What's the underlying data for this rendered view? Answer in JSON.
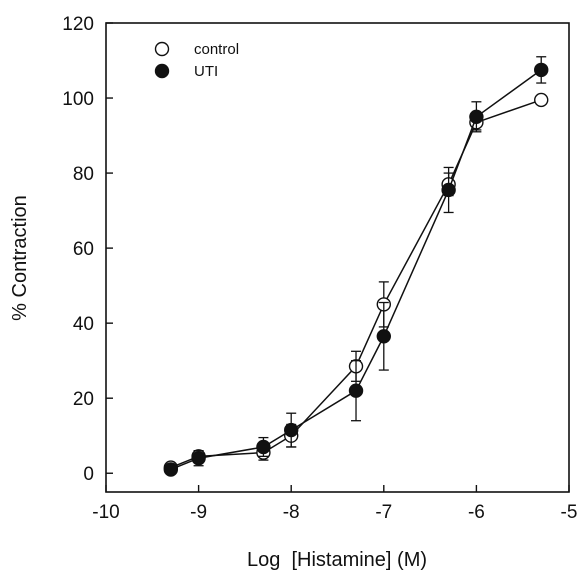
{
  "chart_data": {
    "type": "line",
    "title": "",
    "xlabel": "Log  [Histamine] (M)",
    "ylabel": "% Contraction",
    "xlim": [
      -10,
      -5
    ],
    "ylim": [
      -5,
      120
    ],
    "xticks": [
      -10,
      -9,
      -8,
      -7,
      -6,
      -5
    ],
    "yticks": [
      0,
      20,
      40,
      60,
      80,
      100,
      120
    ],
    "grid": false,
    "legend_position": "top-left",
    "series": [
      {
        "name": "control",
        "marker": "open-circle",
        "color": "#111111",
        "x": [
          -9.3,
          -9.0,
          -8.3,
          -8.0,
          -7.3,
          -7.0,
          -6.3,
          -6.0,
          -5.3
        ],
        "y": [
          1.5,
          4.5,
          5.5,
          10.0,
          28.5,
          45.0,
          77.0,
          93.5,
          99.5
        ],
        "err": [
          1.0,
          1.5,
          2.0,
          3.0,
          4.0,
          6.0,
          3.0,
          2.0,
          0.0
        ]
      },
      {
        "name": "UTI",
        "marker": "filled-circle",
        "color": "#111111",
        "x": [
          -9.3,
          -9.0,
          -8.3,
          -8.0,
          -7.3,
          -7.0,
          -6.3,
          -6.0,
          -5.3
        ],
        "y": [
          1.0,
          4.0,
          7.0,
          11.5,
          22.0,
          36.5,
          75.5,
          95.0,
          107.5
        ],
        "err": [
          1.0,
          2.0,
          2.5,
          4.5,
          8.0,
          9.0,
          6.0,
          4.0,
          3.5
        ]
      }
    ]
  }
}
